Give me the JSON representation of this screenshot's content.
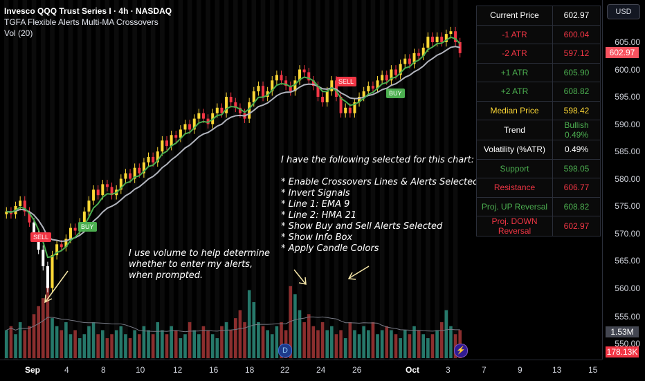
{
  "legend": {
    "symbol": "Invesco QQQ Trust Series I · 4h · NASDAQ",
    "indicator": "TGFA Flexible Alerts Multi-MA Crossovers",
    "volume": "Vol (20)"
  },
  "info_box": [
    {
      "label": "Current Price",
      "value": "602.97",
      "color": "#ffffff"
    },
    {
      "label": "-1 ATR",
      "value": "600.04",
      "color": "#f23645"
    },
    {
      "label": "-2 ATR",
      "value": "597.12",
      "color": "#f23645"
    },
    {
      "label": "+1 ATR",
      "value": "605.90",
      "color": "#4caf50"
    },
    {
      "label": "+2 ATR",
      "value": "608.82",
      "color": "#4caf50"
    },
    {
      "label": "Median Price",
      "value": "598.42",
      "color": "#fdd835"
    },
    {
      "label": "Trend",
      "value": "Bullish 0.49%",
      "color": "#ffffff",
      "value_color": "#4caf50"
    },
    {
      "label": "Volatility (%ATR)",
      "value": "0.49%",
      "color": "#ffffff"
    },
    {
      "label": "Support",
      "value": "598.05",
      "color": "#4caf50"
    },
    {
      "label": "Resistance",
      "value": "606.77",
      "color": "#f23645"
    },
    {
      "label": "Proj. UP Reversal",
      "value": "608.82",
      "color": "#4caf50"
    },
    {
      "label": "Proj. DOWN Reversal",
      "value": "602.97",
      "color": "#f23645"
    }
  ],
  "annotations": {
    "settings": [
      "I have the following selected for this chart:",
      "",
      "* Enable Crossovers Lines & Alerts Selected",
      "* Invert Signals",
      "* Line 1: EMA 9",
      "* Line 2: HMA 21",
      "* Show Buy and Sell Alerts Selected",
      "* Show Info Box",
      "* Apply  Candle Colors"
    ],
    "volume_note": [
      "I use volume to help determine",
      "whether to enter my alerts,",
      "when prompted."
    ]
  },
  "signals": {
    "sell": "SELL",
    "buy": "BUY"
  },
  "price_axis": {
    "currency": "USD",
    "labels": [
      "605.00",
      "600.00",
      "595.00",
      "590.00",
      "585.00",
      "580.00",
      "575.00",
      "570.00",
      "565.00",
      "560.00",
      "555.00",
      "550.00"
    ],
    "current_price": "602.97",
    "volume_tags": [
      "1.53M",
      "178.13K"
    ]
  },
  "time_axis": [
    "Sep",
    "4",
    "8",
    "10",
    "12",
    "16",
    "18",
    "22",
    "24",
    "26",
    "Oct",
    "3",
    "7",
    "9",
    "13",
    "15"
  ],
  "indicator_icons": {
    "dividend": "D",
    "lightning": "⚡"
  },
  "colors": {
    "bull": "#fdd835",
    "bear": "#f23645",
    "ema": "#4caf50",
    "hma": "#b2b5be",
    "vol_up": "#26786a",
    "vol_down": "#8b2e2e"
  },
  "chart_data": {
    "type": "candlestick",
    "symbol": "QQQ",
    "timeframe": "4h",
    "ylim": [
      550,
      608
    ],
    "close": [
      574,
      573.5,
      575,
      576,
      574,
      572,
      570,
      567,
      564,
      560,
      566,
      568,
      567.5,
      569,
      571,
      570.5,
      572,
      574,
      576,
      578,
      577,
      579,
      578.5,
      577,
      578,
      580,
      581,
      580,
      582,
      581,
      583,
      584,
      583,
      585,
      587,
      586,
      588,
      587.5,
      589,
      590,
      589,
      591,
      592,
      591,
      590,
      592,
      593,
      592,
      595,
      594,
      593,
      592,
      591,
      594,
      596,
      597,
      595,
      596,
      598,
      599,
      598,
      597,
      596,
      598,
      600,
      599.5,
      598,
      597,
      595,
      594,
      596,
      598,
      595,
      592,
      593,
      592,
      594,
      595,
      596,
      597,
      596.5,
      598,
      599,
      598,
      600,
      599,
      601,
      602,
      601,
      603,
      602.5,
      604,
      606,
      605,
      606,
      605,
      606.5,
      607,
      605,
      603
    ],
    "volume": [
      0.7,
      0.8,
      0.6,
      0.9,
      0.7,
      0.8,
      1.1,
      1.3,
      1.5,
      1.8,
      1.0,
      0.8,
      0.7,
      0.9,
      0.6,
      0.7,
      0.5,
      0.6,
      0.8,
      0.9,
      0.6,
      0.7,
      0.5,
      0.6,
      0.7,
      0.8,
      0.6,
      0.5,
      0.7,
      0.6,
      0.8,
      0.7,
      0.6,
      0.9,
      0.7,
      0.6,
      0.8,
      0.7,
      0.5,
      0.6,
      0.9,
      0.7,
      0.6,
      0.8,
      0.7,
      0.6,
      0.5,
      0.8,
      0.9,
      0.7,
      1.0,
      1.2,
      0.9,
      1.7,
      1.4,
      0.9,
      0.8,
      0.7,
      0.6,
      0.8,
      0.9,
      0.7,
      1.8,
      1.6,
      1.2,
      0.9,
      1.1,
      0.8,
      0.7,
      0.9,
      0.7,
      0.8,
      0.6,
      0.7,
      0.5,
      0.9,
      0.7,
      0.6,
      0.8,
      0.7,
      0.9,
      0.6,
      0.7,
      0.8,
      0.7,
      0.6,
      0.5,
      0.7,
      0.6,
      0.8,
      0.7,
      0.6,
      0.5,
      0.6,
      0.7,
      0.9,
      1.2,
      0.8,
      0.6,
      0.7
    ]
  }
}
